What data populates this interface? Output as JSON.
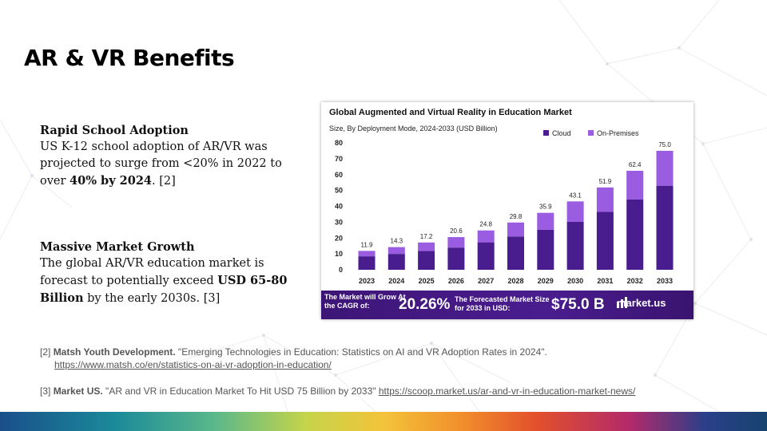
{
  "slide": {
    "title": "AR & VR Benefits"
  },
  "colors": {
    "cloud": "#4a1d8f",
    "on_premises": "#9a5ce0",
    "banner": "#3d1576"
  },
  "blocks": [
    {
      "heading": "Rapid School Adoption",
      "text_1": "US K-12 school adoption of AR/VR was projected to surge from <20% in 2022 to over ",
      "bold": "40% by 2024",
      "text_2": ".  [2]"
    },
    {
      "heading": "Massive Market Growth",
      "text_1": "The global AR/VR education market is forecast to potentially exceed ",
      "bold": "USD 65-80 Billion",
      "text_2": " by the early 2030s. [3]"
    }
  ],
  "chart_data": {
    "type": "bar",
    "stacked": true,
    "title": "Global Augmented and Virtual Reality in Education Market",
    "subtitle": "Size, By Deployment Mode, 2024-2033 (USD Billion)",
    "categories": [
      "2023",
      "2024",
      "2025",
      "2026",
      "2027",
      "2028",
      "2029",
      "2030",
      "2031",
      "2032",
      "2033"
    ],
    "totals": [
      11.9,
      14.3,
      17.2,
      20.6,
      24.8,
      29.8,
      35.9,
      43.1,
      51.9,
      62.4,
      75.0
    ],
    "total_labels": [
      "11.9",
      "14.3",
      "17.2",
      "20.6",
      "24.8",
      "29.8",
      "35.9",
      "43.1",
      "51.9",
      "62.4",
      "75.0"
    ],
    "series": [
      {
        "name": "Cloud",
        "values": [
          8.5,
          10.0,
          11.8,
          14.0,
          17.3,
          21.0,
          25.2,
          30.2,
          36.5,
          44.3,
          53.0
        ]
      },
      {
        "name": "On-Premises",
        "values": [
          3.4,
          4.3,
          5.4,
          6.6,
          7.5,
          8.8,
          10.7,
          12.9,
          15.4,
          18.1,
          22.0
        ]
      }
    ],
    "yticks": [
      "0",
      "10",
      "20",
      "30",
      "40",
      "50",
      "60",
      "70",
      "80"
    ],
    "ylim": [
      0,
      80
    ],
    "legend_position": "top-right",
    "grid": false
  },
  "banner": {
    "text_a": "The Market will Grow At the CAGR of:",
    "cagr": "20.26%",
    "text_c": "The Forecasted Market Size for 2033 in USD:",
    "forecast": "$75.0 B",
    "brand": "market.us"
  },
  "references": {
    "r2_num": "[2] ",
    "r2_source": "Matsh Youth Development.",
    "r2_text": " \"Emerging Technologies in Education: Statistics on AI and VR Adoption Rates in 2024\".",
    "r2_link": "https://www.matsh.co/en/statistics-on-ai-vr-adoption-in-education/",
    "r3_num": "[3] ",
    "r3_source": "Market US.",
    "r3_text": " \"AR and VR in Education Market To Hit USD 75 Billion by 2033\" ",
    "r3_link": "https://scoop.market.us/ar-and-vr-in-education-market-news/"
  }
}
